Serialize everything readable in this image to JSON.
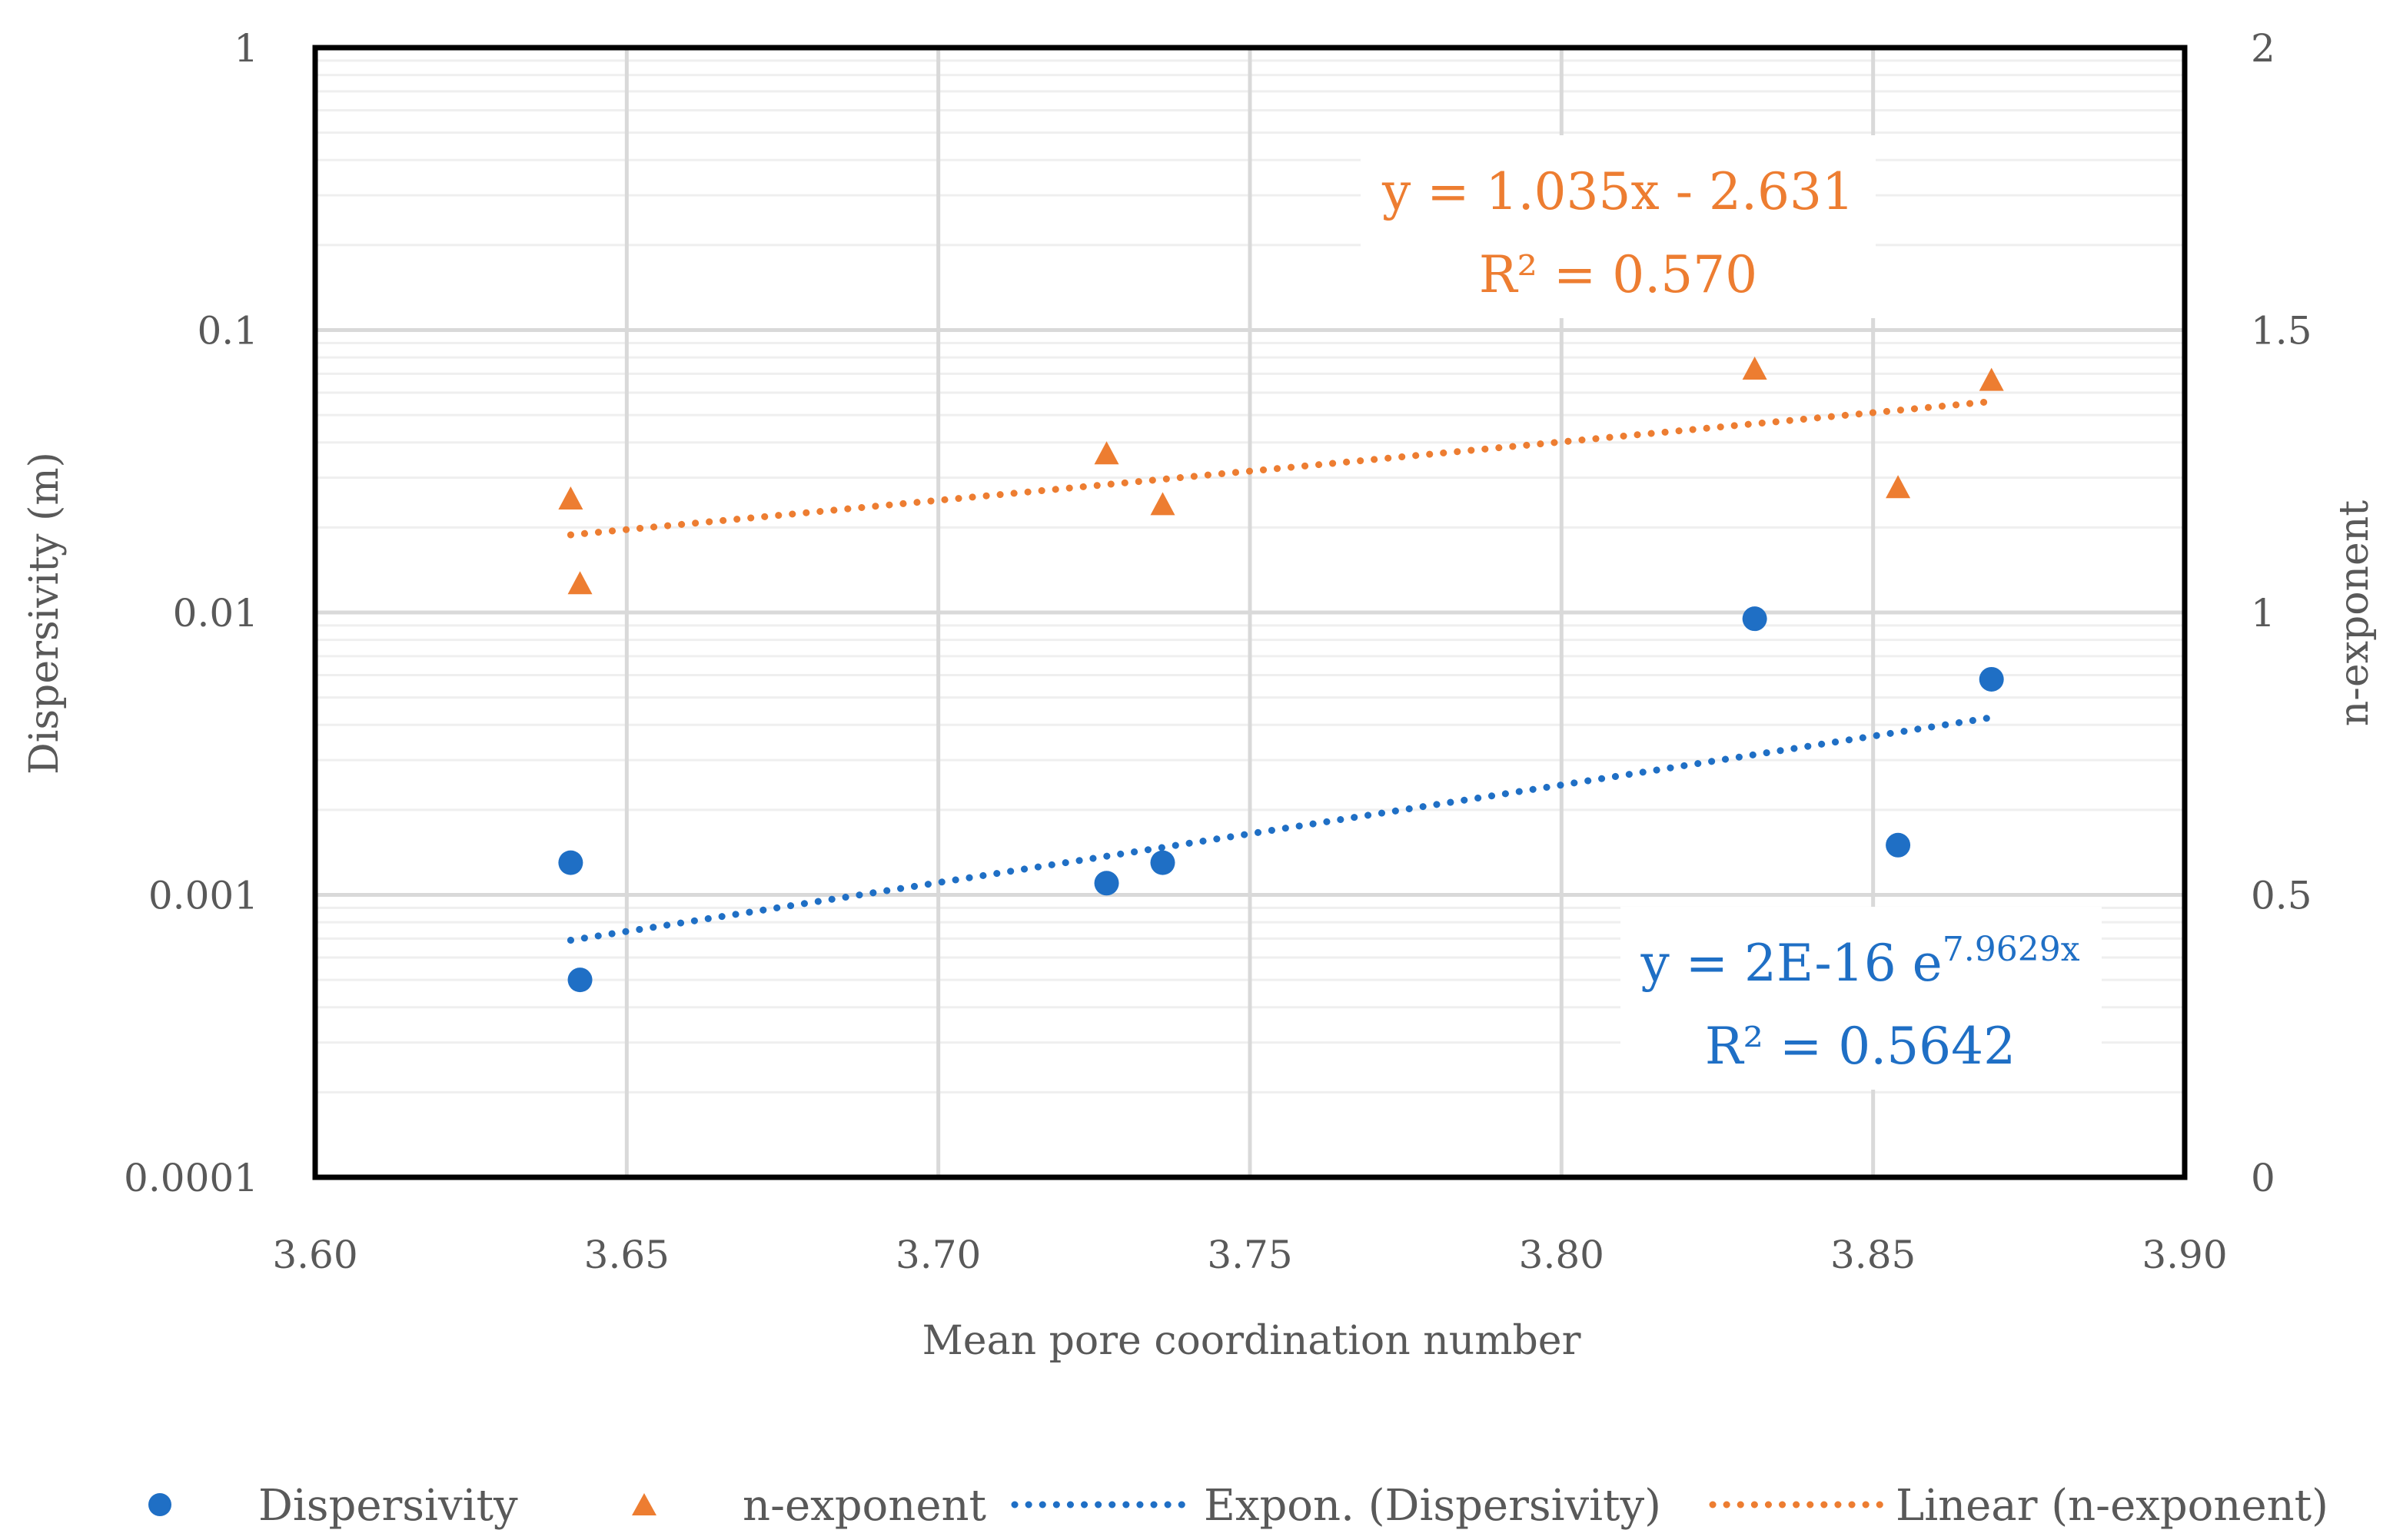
{
  "chart_data": {
    "type": "scatter",
    "title": "",
    "xlabel": "Mean pore coordination number",
    "ylabel_left": "Dispersivity (m)",
    "ylabel_right": "n-exponent",
    "xlim": [
      3.6,
      3.9
    ],
    "ylim_left": [
      0.0001,
      1
    ],
    "yscale_left": "log",
    "ylim_right": [
      0,
      2
    ],
    "x_ticks": [
      "3.60",
      "3.65",
      "3.70",
      "3.75",
      "3.80",
      "3.85",
      "3.90"
    ],
    "y_ticks_left": [
      "1",
      "0.1",
      "0.01",
      "0.001",
      "0.0001"
    ],
    "y_ticks_right": [
      "2",
      "1.5",
      "1",
      "0.5",
      "0"
    ],
    "grid": true,
    "series": [
      {
        "name": "Dispersivity",
        "axis": "left",
        "marker": "circle",
        "color": "#1F6FC5",
        "x": [
          3.641,
          3.6425,
          3.727,
          3.736,
          3.831,
          3.854,
          3.869
        ],
        "y": [
          0.0013,
          0.0005,
          0.0011,
          0.0013,
          0.0095,
          0.0015,
          0.0058
        ]
      },
      {
        "name": "n-exponent",
        "axis": "right",
        "marker": "triangle",
        "color": "#ED7D31",
        "x": [
          3.641,
          3.6425,
          3.727,
          3.736,
          3.831,
          3.854,
          3.869
        ],
        "y": [
          1.2,
          1.05,
          1.28,
          1.19,
          1.43,
          1.22,
          1.41
        ]
      }
    ],
    "trendlines": [
      {
        "name": "Expon. (Dispersivity)",
        "axis": "left",
        "type": "exponential",
        "a": 1.77e-16,
        "b": 7.9629,
        "x_range": [
          3.641,
          3.869
        ],
        "color": "#1F6FC5",
        "equation_main": "y = 2E-16 e",
        "equation_exp": "7.9629x",
        "r2": "R² = 0.5642"
      },
      {
        "name": "Linear (n-exponent)",
        "axis": "right",
        "type": "linear",
        "slope": 1.035,
        "intercept": -2.631,
        "x_range": [
          3.641,
          3.869
        ],
        "color": "#ED7D31",
        "equation": "y = 1.035x - 2.631",
        "r2": "R² = 0.570"
      }
    ],
    "legend": {
      "position": "bottom",
      "entries": [
        "Dispersivity",
        "n-exponent",
        "Expon. (Dispersivity)",
        "Linear (n-exponent)"
      ]
    }
  }
}
